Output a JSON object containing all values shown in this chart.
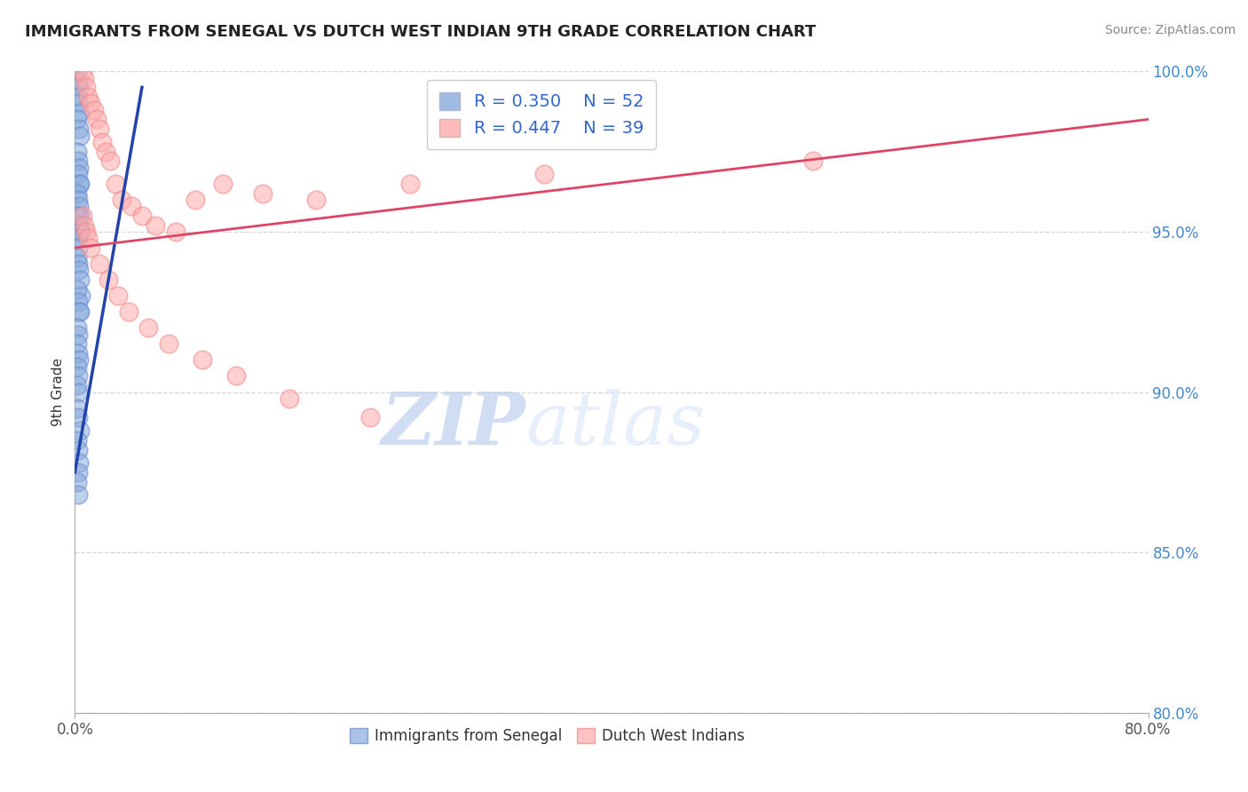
{
  "title": "IMMIGRANTS FROM SENEGAL VS DUTCH WEST INDIAN 9TH GRADE CORRELATION CHART",
  "source": "Source: ZipAtlas.com",
  "xlabel": "",
  "ylabel": "9th Grade",
  "xlim": [
    0.0,
    80.0
  ],
  "ylim": [
    80.0,
    100.0
  ],
  "xticks": [
    0.0,
    20.0,
    40.0,
    60.0,
    80.0
  ],
  "yticks": [
    80.0,
    85.0,
    90.0,
    95.0,
    100.0
  ],
  "xticklabels": [
    "0.0%",
    "",
    "",
    "",
    "80.0%"
  ],
  "yticklabels": [
    "80.0%",
    "85.0%",
    "90.0%",
    "95.0%",
    "100.0%"
  ],
  "blue_color": "#88AADD",
  "pink_color": "#FFAAAA",
  "blue_edge_color": "#6688CC",
  "pink_edge_color": "#EE8888",
  "blue_line_color": "#2244AA",
  "pink_line_color": "#DD4466",
  "legend_r1": "R = 0.350",
  "legend_n1": "N = 52",
  "legend_r2": "R = 0.447",
  "legend_n2": "N = 39",
  "watermark_zip": "ZIP",
  "watermark_atlas": "atlas",
  "grid_color": "#CCCCCC",
  "background_color": "#FFFFFF",
  "blue_scatter_x": [
    0.15,
    0.22,
    0.28,
    0.18,
    0.25,
    0.32,
    0.2,
    0.28,
    0.35,
    0.18,
    0.22,
    0.3,
    0.25,
    0.32,
    0.4,
    0.18,
    0.22,
    0.28,
    0.35,
    0.2,
    0.28,
    0.35,
    0.42,
    0.18,
    0.25,
    0.18,
    0.22,
    0.28,
    0.35,
    0.42,
    0.18,
    0.25,
    0.32,
    0.4,
    0.18,
    0.25,
    0.18,
    0.22,
    0.28,
    0.18,
    0.22,
    0.18,
    0.25,
    0.18,
    0.22,
    0.35,
    0.18,
    0.22,
    0.28,
    0.22,
    0.18,
    0.25
  ],
  "blue_scatter_y": [
    100.0,
    99.7,
    99.5,
    99.2,
    99.0,
    98.7,
    98.5,
    98.2,
    98.0,
    97.5,
    97.2,
    97.0,
    96.8,
    96.5,
    96.5,
    96.2,
    96.0,
    95.8,
    95.5,
    95.5,
    95.2,
    95.0,
    95.0,
    94.8,
    94.5,
    94.2,
    94.0,
    93.8,
    93.5,
    93.0,
    93.2,
    92.8,
    92.5,
    92.5,
    92.0,
    91.8,
    91.5,
    91.2,
    91.0,
    90.8,
    90.5,
    90.2,
    90.0,
    89.5,
    89.2,
    88.8,
    88.5,
    88.2,
    87.8,
    87.5,
    87.2,
    86.8
  ],
  "pink_scatter_x": [
    0.55,
    0.7,
    0.85,
    1.0,
    1.2,
    1.4,
    1.6,
    1.8,
    2.0,
    2.3,
    2.6,
    3.0,
    3.5,
    4.2,
    5.0,
    6.0,
    7.5,
    9.0,
    11.0,
    14.0,
    18.0,
    25.0,
    35.0,
    55.0,
    0.55,
    0.7,
    0.85,
    1.0,
    1.2,
    1.8,
    2.5,
    3.2,
    4.0,
    5.5,
    7.0,
    9.5,
    12.0,
    16.0,
    22.0
  ],
  "pink_scatter_y": [
    100.0,
    99.8,
    99.5,
    99.2,
    99.0,
    98.8,
    98.5,
    98.2,
    97.8,
    97.5,
    97.2,
    96.5,
    96.0,
    95.8,
    95.5,
    95.2,
    95.0,
    96.0,
    96.5,
    96.2,
    96.0,
    96.5,
    96.8,
    97.2,
    95.5,
    95.2,
    95.0,
    94.8,
    94.5,
    94.0,
    93.5,
    93.0,
    92.5,
    92.0,
    91.5,
    91.0,
    90.5,
    89.8,
    89.2
  ],
  "blue_trend_x": [
    0.0,
    5.0
  ],
  "blue_trend_y": [
    87.5,
    99.5
  ],
  "pink_trend_x": [
    0.0,
    80.0
  ],
  "pink_trend_y": [
    94.5,
    98.5
  ]
}
